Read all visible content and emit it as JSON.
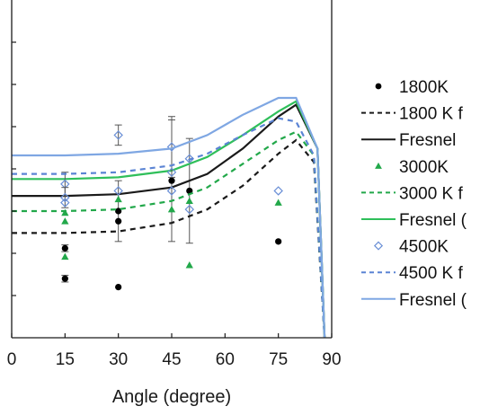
{
  "chart_data": {
    "type": "scatter",
    "title": "",
    "xlabel": "Angle (degree)",
    "ylabel": "",
    "xlim": [
      0,
      90
    ],
    "ylim": [
      0,
      1
    ],
    "x_ticks": [
      0,
      15,
      30,
      45,
      60,
      75,
      90
    ],
    "x_tick_labels": [
      "0",
      "15",
      "30",
      "45",
      "60",
      "75",
      "90"
    ],
    "y_ticks": [
      0.125,
      0.25,
      0.375,
      0.5,
      0.625,
      0.75,
      0.875
    ],
    "grid": false,
    "legend_position": "right",
    "series": [
      {
        "name": "1800K",
        "kind": "points",
        "marker": "circle",
        "color": "#000000",
        "points": [
          {
            "x": 15,
            "y": 0.265,
            "err": 0.01
          },
          {
            "x": 15,
            "y": 0.175,
            "err": 0.01
          },
          {
            "x": 30,
            "y": 0.375,
            "err": 0.09
          },
          {
            "x": 30,
            "y": 0.345
          },
          {
            "x": 30,
            "y": 0.15
          },
          {
            "x": 45,
            "y": 0.465,
            "err": 0.18
          },
          {
            "x": 50,
            "y": 0.435,
            "err": 0.155
          },
          {
            "x": 75,
            "y": 0.285
          }
        ]
      },
      {
        "name": "1800 K f",
        "kind": "line",
        "dash": "6,5",
        "color": "#1a1a1a",
        "points": [
          {
            "x": 0,
            "y": 0.31
          },
          {
            "x": 15,
            "y": 0.31
          },
          {
            "x": 30,
            "y": 0.315
          },
          {
            "x": 45,
            "y": 0.34
          },
          {
            "x": 55,
            "y": 0.38
          },
          {
            "x": 65,
            "y": 0.45
          },
          {
            "x": 75,
            "y": 0.545
          },
          {
            "x": 80,
            "y": 0.585
          },
          {
            "x": 85,
            "y": 0.52
          },
          {
            "x": 88,
            "y": 0.0
          }
        ]
      },
      {
        "name": "Fresnel",
        "kind": "line",
        "dash": "",
        "color": "#1a1a1a",
        "points": [
          {
            "x": 0,
            "y": 0.42
          },
          {
            "x": 15,
            "y": 0.42
          },
          {
            "x": 30,
            "y": 0.425
          },
          {
            "x": 45,
            "y": 0.445
          },
          {
            "x": 55,
            "y": 0.485
          },
          {
            "x": 65,
            "y": 0.56
          },
          {
            "x": 75,
            "y": 0.655
          },
          {
            "x": 80,
            "y": 0.69
          },
          {
            "x": 86,
            "y": 0.56
          },
          {
            "x": 88,
            "y": 0.0
          }
        ]
      },
      {
        "name": "3000K",
        "kind": "points",
        "marker": "triangle",
        "color": "#22a84a",
        "points": [
          {
            "x": 15,
            "y": 0.37
          },
          {
            "x": 15,
            "y": 0.345
          },
          {
            "x": 15,
            "y": 0.24
          },
          {
            "x": 30,
            "y": 0.41
          },
          {
            "x": 45,
            "y": 0.38
          },
          {
            "x": 50,
            "y": 0.405
          },
          {
            "x": 50,
            "y": 0.215
          },
          {
            "x": 75,
            "y": 0.4
          }
        ]
      },
      {
        "name": "3000 K f",
        "kind": "line",
        "dash": "6,5",
        "color": "#22a84a",
        "points": [
          {
            "x": 0,
            "y": 0.375
          },
          {
            "x": 15,
            "y": 0.375
          },
          {
            "x": 30,
            "y": 0.38
          },
          {
            "x": 45,
            "y": 0.405
          },
          {
            "x": 55,
            "y": 0.445
          },
          {
            "x": 65,
            "y": 0.515
          },
          {
            "x": 75,
            "y": 0.585
          },
          {
            "x": 80,
            "y": 0.61
          },
          {
            "x": 85,
            "y": 0.54
          },
          {
            "x": 88,
            "y": 0.0
          }
        ]
      },
      {
        "name": "Fresnel (",
        "kind": "line",
        "dash": "",
        "color": "#2fbf5a",
        "points": [
          {
            "x": 0,
            "y": 0.47
          },
          {
            "x": 15,
            "y": 0.47
          },
          {
            "x": 30,
            "y": 0.475
          },
          {
            "x": 45,
            "y": 0.495
          },
          {
            "x": 55,
            "y": 0.535
          },
          {
            "x": 65,
            "y": 0.6
          },
          {
            "x": 75,
            "y": 0.67
          },
          {
            "x": 80,
            "y": 0.7
          },
          {
            "x": 86,
            "y": 0.56
          },
          {
            "x": 88,
            "y": 0.0
          }
        ]
      },
      {
        "name": "4500K",
        "kind": "points",
        "marker": "diamond",
        "color": "#6a8fd6",
        "points": [
          {
            "x": 15,
            "y": 0.455,
            "err": 0.035
          },
          {
            "x": 15,
            "y": 0.415,
            "err": 0.03
          },
          {
            "x": 15,
            "y": 0.4
          },
          {
            "x": 30,
            "y": 0.6,
            "err": 0.03
          },
          {
            "x": 30,
            "y": 0.435
          },
          {
            "x": 45,
            "y": 0.565,
            "err": 0.09
          },
          {
            "x": 45,
            "y": 0.49
          },
          {
            "x": 45,
            "y": 0.435
          },
          {
            "x": 50,
            "y": 0.53
          },
          {
            "x": 50,
            "y": 0.38
          },
          {
            "x": 75,
            "y": 0.435
          }
        ]
      },
      {
        "name": "4500 K f",
        "kind": "line",
        "dash": "6,5",
        "color": "#5b84d4",
        "points": [
          {
            "x": 0,
            "y": 0.485
          },
          {
            "x": 15,
            "y": 0.485
          },
          {
            "x": 30,
            "y": 0.49
          },
          {
            "x": 45,
            "y": 0.51
          },
          {
            "x": 55,
            "y": 0.545
          },
          {
            "x": 65,
            "y": 0.6
          },
          {
            "x": 75,
            "y": 0.65
          },
          {
            "x": 80,
            "y": 0.64
          },
          {
            "x": 85,
            "y": 0.54
          },
          {
            "x": 88,
            "y": 0.0
          }
        ]
      },
      {
        "name": "Fresnel (",
        "kind": "line",
        "dash": "",
        "color": "#7fa7e3",
        "points": [
          {
            "x": 0,
            "y": 0.54
          },
          {
            "x": 15,
            "y": 0.54
          },
          {
            "x": 30,
            "y": 0.545
          },
          {
            "x": 45,
            "y": 0.56
          },
          {
            "x": 55,
            "y": 0.6
          },
          {
            "x": 65,
            "y": 0.66
          },
          {
            "x": 75,
            "y": 0.71
          },
          {
            "x": 80,
            "y": 0.71
          },
          {
            "x": 86,
            "y": 0.56
          },
          {
            "x": 88,
            "y": 0.0
          }
        ]
      }
    ]
  }
}
